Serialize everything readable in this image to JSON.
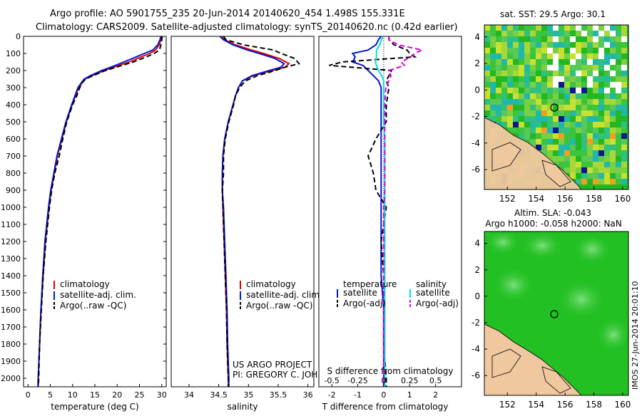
{
  "header": {
    "line1": "Argo profile: AO 5901755_235 20-Jun-2014 20140620_454 1.498S 155.331E",
    "line2": "Climatology: CARS2009. Satellite-adjusted climatology: synTS_20140620.nc (0.42d earlier)"
  },
  "colors": {
    "climatology": "#e00000",
    "satellite": "#0018d0",
    "argo": "#000000",
    "satellite_salinity": "#00e0e0",
    "argo_salinity_diff": "#e000e0"
  },
  "depth_axis": {
    "range": [
      0,
      2050
    ],
    "ticks": [
      "0",
      "100",
      "200",
      "300",
      "400",
      "500",
      "600",
      "700",
      "800",
      "900",
      "1000",
      "1100",
      "1200",
      "1300",
      "1400",
      "1500",
      "1600",
      "1700",
      "1800",
      "1900",
      "2000"
    ]
  },
  "legend_profiles": [
    "climatology",
    "satellite-adj. clim.",
    "Argo(..raw -QC)"
  ],
  "legend_diff": {
    "temperature_header": "temperature",
    "salinity_header": "salinity",
    "satellite": "satellite",
    "argo": "Argo(-adj)",
    "salinity_satellite": "satellite",
    "salinity_argo": "Argo(-adj)"
  },
  "credit": {
    "line1": "US ARGO PROJECT",
    "line2": "PI: GREGORY C. JOHNSON"
  },
  "map_top": {
    "title": "sat. SST: 29.5 Argo: 30.1",
    "x_ticks": [
      "152",
      "154",
      "156",
      "158",
      "160"
    ],
    "y_ticks": [
      "4",
      "2",
      "0",
      "-2",
      "-4",
      "-6"
    ]
  },
  "map_bottom": {
    "title_line1": "Altim. SLA: -0.043",
    "title_line2": "Argo h1000: -0.058 h2000: NaN",
    "x_ticks": [
      "152",
      "154",
      "156",
      "158",
      "160"
    ],
    "y_ticks": [
      "4",
      "2",
      "0",
      "-2",
      "-4",
      "-6"
    ]
  },
  "watermark": "IMOS 27-Jun-2014 20:01:10",
  "chart_data": [
    {
      "type": "line",
      "name": "temperature",
      "xlabel": "temperature (deg C)",
      "ylabel": "",
      "xlim": [
        -1,
        31
      ],
      "ylim": [
        2050,
        0
      ],
      "x_ticks": [
        "0",
        "5",
        "10",
        "15",
        "20",
        "25",
        "30"
      ],
      "y": [
        0,
        20,
        50,
        80,
        100,
        120,
        150,
        170,
        200,
        230,
        250,
        270,
        300,
        350,
        400,
        500,
        600,
        700,
        800,
        900,
        1000,
        1200,
        1400,
        1600,
        1800,
        2000,
        2050
      ],
      "series": [
        {
          "name": "climatology",
          "values": [
            29.9,
            29.8,
            29.4,
            28.6,
            27.3,
            25.4,
            22.7,
            20.4,
            17.1,
            14.4,
            12.8,
            12.2,
            11.4,
            10.6,
            9.9,
            8.6,
            7.6,
            6.6,
            5.9,
            5.2,
            4.7,
            3.9,
            3.4,
            2.9,
            2.6,
            2.3,
            2.2
          ]
        },
        {
          "name": "satellite-adj. clim.",
          "values": [
            29.8,
            29.6,
            29.1,
            28.0,
            26.1,
            24.3,
            21.5,
            19.6,
            16.5,
            14.0,
            12.6,
            12.0,
            11.2,
            10.5,
            9.8,
            8.5,
            7.5,
            6.5,
            5.8,
            5.1,
            4.6,
            3.8,
            3.3,
            2.9,
            2.6,
            2.3,
            2.3
          ]
        },
        {
          "name": "Argo(..raw -QC)",
          "values": [
            30.1,
            30.0,
            29.8,
            29.5,
            28.3,
            26.6,
            23.6,
            21.1,
            17.4,
            14.6,
            12.9,
            12.2,
            11.6,
            10.9,
            10.0,
            8.7,
            7.8,
            7.0,
            6.0,
            5.3,
            4.8,
            4.0,
            3.4,
            3.0,
            2.6,
            2.4,
            2.3
          ]
        }
      ]
    },
    {
      "type": "line",
      "name": "salinity",
      "xlabel": "salinity",
      "ylabel": "",
      "xlim": [
        33.7,
        36.1
      ],
      "ylim": [
        2050,
        0
      ],
      "x_ticks": [
        "34",
        "34.5",
        "35",
        "35.5",
        "36"
      ],
      "y": [
        0,
        20,
        50,
        80,
        100,
        130,
        160,
        180,
        200,
        230,
        260,
        300,
        350,
        400,
        500,
        600,
        700,
        800,
        900,
        1000,
        1200,
        1400,
        1600,
        1800,
        2000,
        2050
      ],
      "series": [
        {
          "name": "climatology",
          "values": [
            34.53,
            34.6,
            34.78,
            35.05,
            35.25,
            35.52,
            35.68,
            35.62,
            35.4,
            35.08,
            34.9,
            34.83,
            34.78,
            34.74,
            34.66,
            34.6,
            34.57,
            34.56,
            34.56,
            34.57,
            34.59,
            34.61,
            34.63,
            34.64,
            34.66,
            34.66
          ]
        },
        {
          "name": "satellite-adj. clim.",
          "values": [
            34.52,
            34.58,
            34.74,
            34.98,
            35.18,
            35.45,
            35.6,
            35.55,
            35.35,
            35.06,
            34.9,
            34.83,
            34.78,
            34.74,
            34.66,
            34.6,
            34.57,
            34.56,
            34.56,
            34.58,
            34.6,
            34.62,
            34.64,
            34.65,
            34.67,
            34.67
          ]
        },
        {
          "name": "Argo(..raw -QC)",
          "values": [
            34.58,
            34.62,
            34.92,
            35.42,
            35.55,
            35.78,
            35.85,
            35.62,
            35.45,
            35.15,
            34.95,
            34.85,
            34.78,
            34.75,
            34.67,
            34.61,
            34.58,
            34.58,
            34.56,
            34.57,
            34.59,
            34.61,
            34.63,
            34.64,
            34.66,
            34.66
          ]
        }
      ]
    },
    {
      "type": "line",
      "name": "differences",
      "xlabel": "T difference from climatology",
      "xlabel_top": "S difference from climatology",
      "xlim": [
        -2.5,
        3.0
      ],
      "ylim": [
        2050,
        0
      ],
      "x_ticks_t": [
        "-2",
        "-1",
        "0",
        "1",
        "2"
      ],
      "x_ticks_s": [
        "-0.5",
        "-0.25",
        "0",
        "0.25",
        "0.5"
      ],
      "x_ticks_s_values": [
        -0.5,
        -0.25,
        0,
        0.25,
        0.5
      ],
      "s_scale": 4,
      "y": [
        0,
        20,
        50,
        80,
        100,
        120,
        150,
        170,
        200,
        230,
        260,
        300,
        400,
        500,
        600,
        700,
        800,
        900,
        1000,
        1200,
        1400,
        1600,
        1800,
        2000,
        2050
      ],
      "series": [
        {
          "name": "temperature satellite",
          "values": [
            -0.1,
            -0.2,
            -0.3,
            -0.6,
            -1.2,
            -1.1,
            -1.2,
            -0.8,
            -0.6,
            -0.4,
            -0.2,
            -0.1,
            -0.1,
            -0.1,
            -0.1,
            -0.1,
            -0.1,
            -0.1,
            -0.1,
            -0.1,
            -0.1,
            0.0,
            0.0,
            0.0,
            0.0
          ]
        },
        {
          "name": "temperature Argo(-adj)",
          "values": [
            0.2,
            0.2,
            0.4,
            0.9,
            1.0,
            1.2,
            -1.6,
            -2.1,
            0.3,
            0.2,
            0.1,
            0.2,
            0.1,
            0.1,
            -0.3,
            -0.6,
            -0.4,
            -0.3,
            0.1,
            -0.1,
            0.0,
            0.0,
            0.0,
            0.1,
            0.1
          ]
        },
        {
          "name": "salinity satellite",
          "values": [
            -0.01,
            -0.02,
            -0.04,
            -0.07,
            -0.07,
            -0.07,
            -0.08,
            -0.07,
            -0.05,
            -0.02,
            0.0,
            0.0,
            0.0,
            0.0,
            0.01,
            0.01,
            0.01,
            0.01,
            0.01,
            0.01,
            0.01,
            0.01,
            0.01,
            0.01,
            0.01
          ]
        },
        {
          "name": "salinity Argo(-adj)",
          "values": [
            0.05,
            0.05,
            0.14,
            0.37,
            0.3,
            0.26,
            0.17,
            0.2,
            0.05,
            0.07,
            0.05,
            0.02,
            0.01,
            0.01,
            0.01,
            0.01,
            0.01,
            0.01,
            0.0,
            0.0,
            0.0,
            0.0,
            0.0,
            0.0,
            0.0
          ]
        }
      ]
    }
  ]
}
